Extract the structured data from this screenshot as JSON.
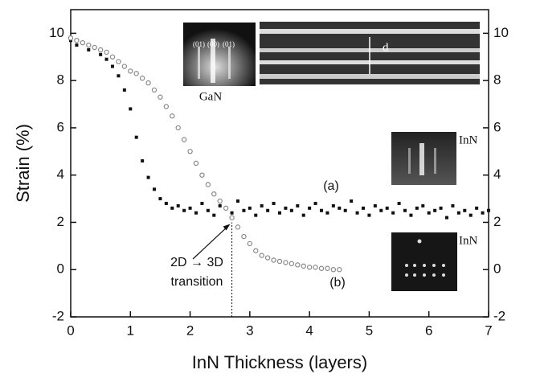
{
  "chart_data": {
    "type": "scatter",
    "xlabel": "InN Thickness (layers)",
    "ylabel": "Strain (%)",
    "xlim": [
      0,
      7
    ],
    "ylim": [
      -2,
      11
    ],
    "y2lim": [
      -2,
      11
    ],
    "xticks": [
      0,
      1,
      2,
      3,
      4,
      5,
      6,
      7
    ],
    "yticks": [
      -2,
      0,
      2,
      4,
      6,
      8,
      10
    ],
    "y2ticks": [
      -2,
      0,
      2,
      4,
      6,
      8,
      10
    ],
    "series": [
      {
        "name": "(a)",
        "color": "#111111",
        "marker": "square",
        "x": [
          0,
          0.1,
          0.2,
          0.3,
          0.4,
          0.5,
          0.6,
          0.7,
          0.8,
          0.9,
          1.0,
          1.1,
          1.2,
          1.3,
          1.4,
          1.5,
          1.6,
          1.7,
          1.8,
          1.9,
          2.0,
          2.1,
          2.2,
          2.3,
          2.4,
          2.5,
          2.6,
          2.7,
          2.8,
          2.9,
          3.0,
          3.1,
          3.2,
          3.3,
          3.4,
          3.5,
          3.6,
          3.7,
          3.8,
          3.9,
          4.0,
          4.1,
          4.2,
          4.3,
          4.4,
          4.5,
          4.6,
          4.7,
          4.8,
          4.9,
          5.0,
          5.1,
          5.2,
          5.3,
          5.4,
          5.5,
          5.6,
          5.7,
          5.8,
          5.9,
          6.0,
          6.1,
          6.2,
          6.3,
          6.4,
          6.5,
          6.6,
          6.7,
          6.8,
          6.9,
          7.0
        ],
        "values": [
          9.7,
          9.5,
          9.6,
          9.3,
          9.4,
          9.1,
          8.9,
          8.6,
          8.2,
          7.6,
          6.8,
          5.6,
          4.6,
          3.9,
          3.4,
          3.0,
          2.8,
          2.6,
          2.7,
          2.5,
          2.6,
          2.4,
          2.8,
          2.5,
          2.3,
          2.7,
          2.6,
          2.4,
          2.9,
          2.5,
          2.6,
          2.3,
          2.7,
          2.5,
          2.8,
          2.4,
          2.6,
          2.5,
          2.7,
          2.3,
          2.6,
          2.8,
          2.5,
          2.4,
          2.7,
          2.6,
          2.5,
          2.9,
          2.4,
          2.6,
          2.3,
          2.7,
          2.5,
          2.6,
          2.4,
          2.8,
          2.5,
          2.3,
          2.6,
          2.7,
          2.4,
          2.5,
          2.6,
          2.2,
          2.7,
          2.4,
          2.5,
          2.3,
          2.6,
          2.4,
          2.5
        ]
      },
      {
        "name": "(b)",
        "color": "#888888",
        "marker": "circle",
        "x": [
          0,
          0.1,
          0.2,
          0.3,
          0.4,
          0.5,
          0.6,
          0.7,
          0.8,
          0.9,
          1.0,
          1.1,
          1.2,
          1.3,
          1.4,
          1.5,
          1.6,
          1.7,
          1.8,
          1.9,
          2.0,
          2.1,
          2.2,
          2.3,
          2.4,
          2.5,
          2.6,
          2.7,
          2.8,
          2.9,
          3.0,
          3.1,
          3.2,
          3.3,
          3.4,
          3.5,
          3.6,
          3.7,
          3.8,
          3.9,
          4.0,
          4.1,
          4.2,
          4.3,
          4.4,
          4.5
        ],
        "values": [
          9.8,
          9.7,
          9.6,
          9.5,
          9.4,
          9.3,
          9.2,
          9.0,
          8.8,
          8.6,
          8.4,
          8.3,
          8.1,
          7.9,
          7.6,
          7.3,
          6.9,
          6.5,
          6.0,
          5.5,
          5.0,
          4.5,
          4.0,
          3.6,
          3.2,
          2.9,
          2.6,
          2.2,
          1.8,
          1.4,
          1.1,
          0.8,
          0.6,
          0.5,
          0.4,
          0.35,
          0.3,
          0.25,
          0.2,
          0.15,
          0.1,
          0.1,
          0.05,
          0.05,
          0,
          0
        ]
      }
    ],
    "transition": {
      "x": 2.7,
      "y": 2,
      "line1": "2D → 3D",
      "line2": "transition"
    },
    "insets": {
      "gan": "GaN",
      "inn_top": "InN",
      "inn_bottom": "InN",
      "spot_left": "(01)",
      "spot_mid": "(00)",
      "spot_right": "(01)",
      "spacing": "d"
    }
  }
}
